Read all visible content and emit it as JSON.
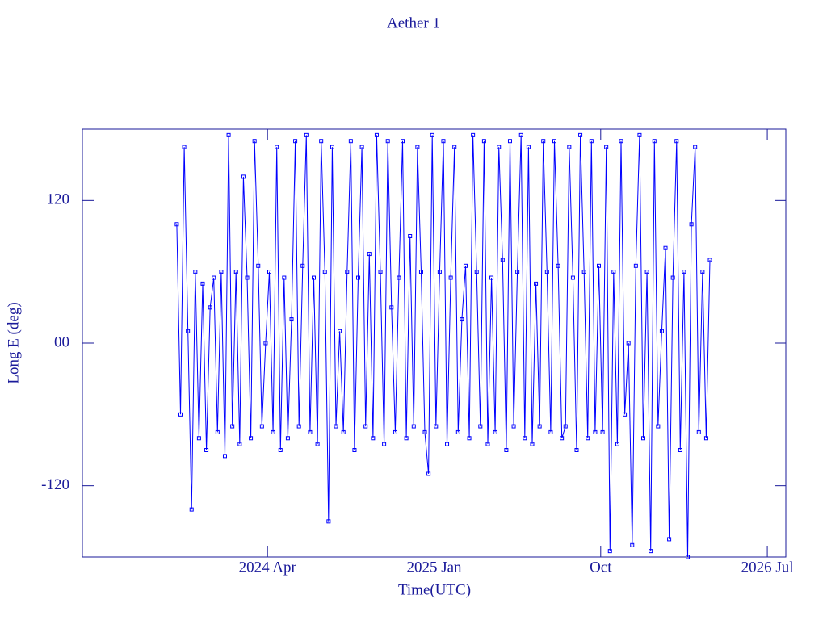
{
  "chart_data": {
    "type": "line",
    "title": "Aether 1",
    "xlabel": "Time(UTC)",
    "ylabel": "Long E (deg)",
    "xlim": [
      "2023-06",
      "2026-08"
    ],
    "xticks": [
      {
        "value": "2024-04",
        "label": "2024 Apr"
      },
      {
        "value": "2025-01",
        "label": "2025 Jan"
      },
      {
        "value": "2025-10",
        "label": "Oct"
      },
      {
        "value": "2026-07",
        "label": "2026 Jul"
      }
    ],
    "ylim": [
      -180,
      180
    ],
    "yticks": [
      -120,
      {
        "value": 0,
        "label": "00"
      },
      120
    ],
    "markers": true,
    "x": [
      "2023-11",
      "2023-11",
      "2023-11",
      "2023-11",
      "2023-11",
      "2023-12",
      "2023-12",
      "2023-12",
      "2023-12",
      "2023-12",
      "2024-01",
      "2024-01",
      "2024-01",
      "2024-01",
      "2024-01",
      "2024-02",
      "2024-02",
      "2024-02",
      "2024-02",
      "2024-02",
      "2024-03",
      "2024-03",
      "2024-03",
      "2024-03",
      "2024-03",
      "2024-04",
      "2024-04",
      "2024-04",
      "2024-04",
      "2024-04",
      "2024-05",
      "2024-05",
      "2024-05",
      "2024-05",
      "2024-05",
      "2024-06",
      "2024-06",
      "2024-06",
      "2024-06",
      "2024-06",
      "2024-07",
      "2024-07",
      "2024-07",
      "2024-07",
      "2024-07",
      "2024-08",
      "2024-08",
      "2024-08",
      "2024-08",
      "2024-08",
      "2024-09",
      "2024-09",
      "2024-09",
      "2024-09",
      "2024-09",
      "2024-10",
      "2024-10",
      "2024-10",
      "2024-10",
      "2024-10",
      "2024-11",
      "2024-11",
      "2024-11",
      "2024-11",
      "2024-11",
      "2024-12",
      "2024-12",
      "2024-12",
      "2024-12",
      "2024-12",
      "2025-01",
      "2025-01",
      "2025-01",
      "2025-01",
      "2025-01",
      "2025-02",
      "2025-02",
      "2025-02",
      "2025-02",
      "2025-02",
      "2025-03",
      "2025-03",
      "2025-03",
      "2025-03",
      "2025-03",
      "2025-04",
      "2025-04",
      "2025-04",
      "2025-04",
      "2025-04",
      "2025-05",
      "2025-05",
      "2025-05",
      "2025-05",
      "2025-05",
      "2025-06",
      "2025-06",
      "2025-06",
      "2025-06",
      "2025-06",
      "2025-07",
      "2025-07",
      "2025-07",
      "2025-07",
      "2025-07",
      "2025-08",
      "2025-08",
      "2025-08",
      "2025-08",
      "2025-08",
      "2025-09",
      "2025-09",
      "2025-09",
      "2025-09",
      "2025-09",
      "2025-10",
      "2025-10",
      "2025-10",
      "2025-10",
      "2025-10",
      "2025-11",
      "2025-11",
      "2025-11",
      "2025-11",
      "2025-11",
      "2025-12",
      "2025-12",
      "2025-12",
      "2025-12",
      "2025-12",
      "2026-01",
      "2026-01",
      "2026-01",
      "2026-01",
      "2026-01",
      "2026-02",
      "2026-02",
      "2026-02",
      "2026-02",
      "2026-02",
      "2026-03",
      "2026-03",
      "2026-03",
      "2026-03",
      "2026-03"
    ],
    "series": [
      {
        "color": "#0000ff",
        "values": [
          100,
          -60,
          165,
          10,
          -140,
          60,
          -80,
          50,
          -90,
          30,
          55,
          -75,
          60,
          -95,
          175,
          -70,
          60,
          -85,
          140,
          55,
          -80,
          170,
          65,
          -70,
          0,
          60,
          -75,
          165,
          -90,
          55,
          -80,
          20,
          170,
          -70,
          65,
          175,
          -75,
          55,
          -85,
          170,
          60,
          -150,
          165,
          -70,
          10,
          -75,
          60,
          170,
          -90,
          55,
          165,
          -70,
          75,
          -80,
          175,
          60,
          -85,
          170,
          30,
          -75,
          55,
          170,
          -80,
          90,
          -70,
          165,
          60,
          -75,
          -110,
          175,
          -70,
          60,
          170,
          -85,
          55,
          165,
          -75,
          20,
          65,
          -80,
          175,
          60,
          -70,
          170,
          -85,
          55,
          -75,
          165,
          70,
          -90,
          170,
          -70,
          60,
          175,
          -80,
          165,
          -85,
          50,
          -70,
          170,
          60,
          -75,
          170,
          65,
          -80,
          -70,
          165,
          55,
          -90,
          175,
          60,
          -80,
          170,
          -75,
          65,
          -75,
          165,
          -175,
          60,
          -85,
          170,
          -60,
          0,
          -170,
          65,
          175,
          -80,
          60,
          -175,
          170,
          -70,
          10,
          80,
          -165,
          55,
          170,
          -90,
          60,
          -180,
          100,
          165,
          -75,
          60,
          -80,
          70
        ]
      }
    ]
  }
}
